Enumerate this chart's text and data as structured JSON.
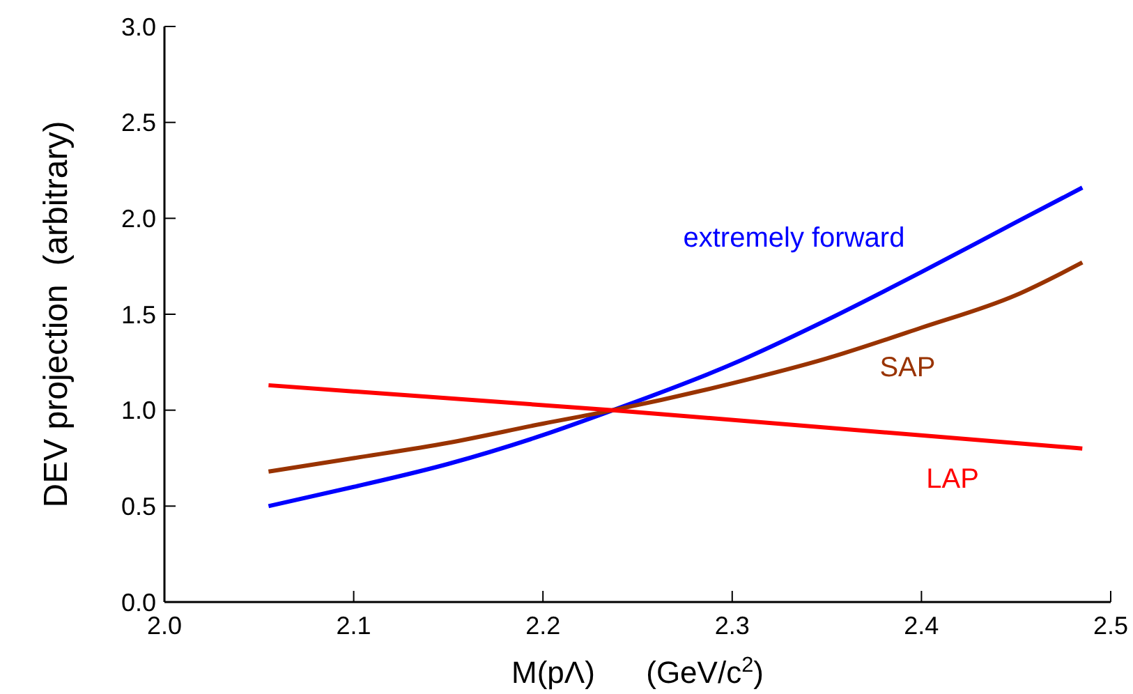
{
  "chart_data": {
    "type": "line",
    "xlabel": "M(pΛ)      (GeV/c$^{2}$)",
    "ylabel": "DEV projection  (arbitrary)",
    "xlim": [
      2.0,
      2.5
    ],
    "xticks": [
      {
        "value": 2.0,
        "label": "2.0"
      },
      2.1,
      2.2,
      2.3,
      2.4,
      {
        "value": 2.5,
        "label": "2.5"
      }
    ],
    "ylim": [
      0,
      3
    ],
    "yticks": [
      {
        "value": 0,
        "label": "0.0"
      },
      0.5,
      {
        "value": 1,
        "label": "1.0"
      },
      1.5,
      {
        "value": 2,
        "label": "2.0"
      },
      2.5,
      {
        "value": 3,
        "label": "3.0"
      }
    ],
    "grid": false,
    "legend": false,
    "marker": "none",
    "line_style": "solid",
    "series": [
      {
        "name": "extremely forward",
        "color": "#0000ff",
        "x": [
          2.055,
          2.1,
          2.15,
          2.2,
          2.237,
          2.3,
          2.35,
          2.4,
          2.45,
          2.485
        ],
        "values": [
          0.5,
          0.6,
          0.72,
          0.87,
          1.0,
          1.24,
          1.47,
          1.72,
          1.98,
          2.16
        ]
      },
      {
        "name": "SAP",
        "color": "#993300",
        "x": [
          2.055,
          2.1,
          2.15,
          2.2,
          2.237,
          2.3,
          2.35,
          2.4,
          2.45,
          2.485
        ],
        "values": [
          0.68,
          0.75,
          0.83,
          0.93,
          1.0,
          1.14,
          1.27,
          1.43,
          1.6,
          1.77
        ]
      },
      {
        "name": "LAP",
        "color": "#ff0000",
        "x": [
          2.055,
          2.237,
          2.485
        ],
        "values": [
          1.13,
          1.0,
          0.8
        ]
      }
    ]
  }
}
